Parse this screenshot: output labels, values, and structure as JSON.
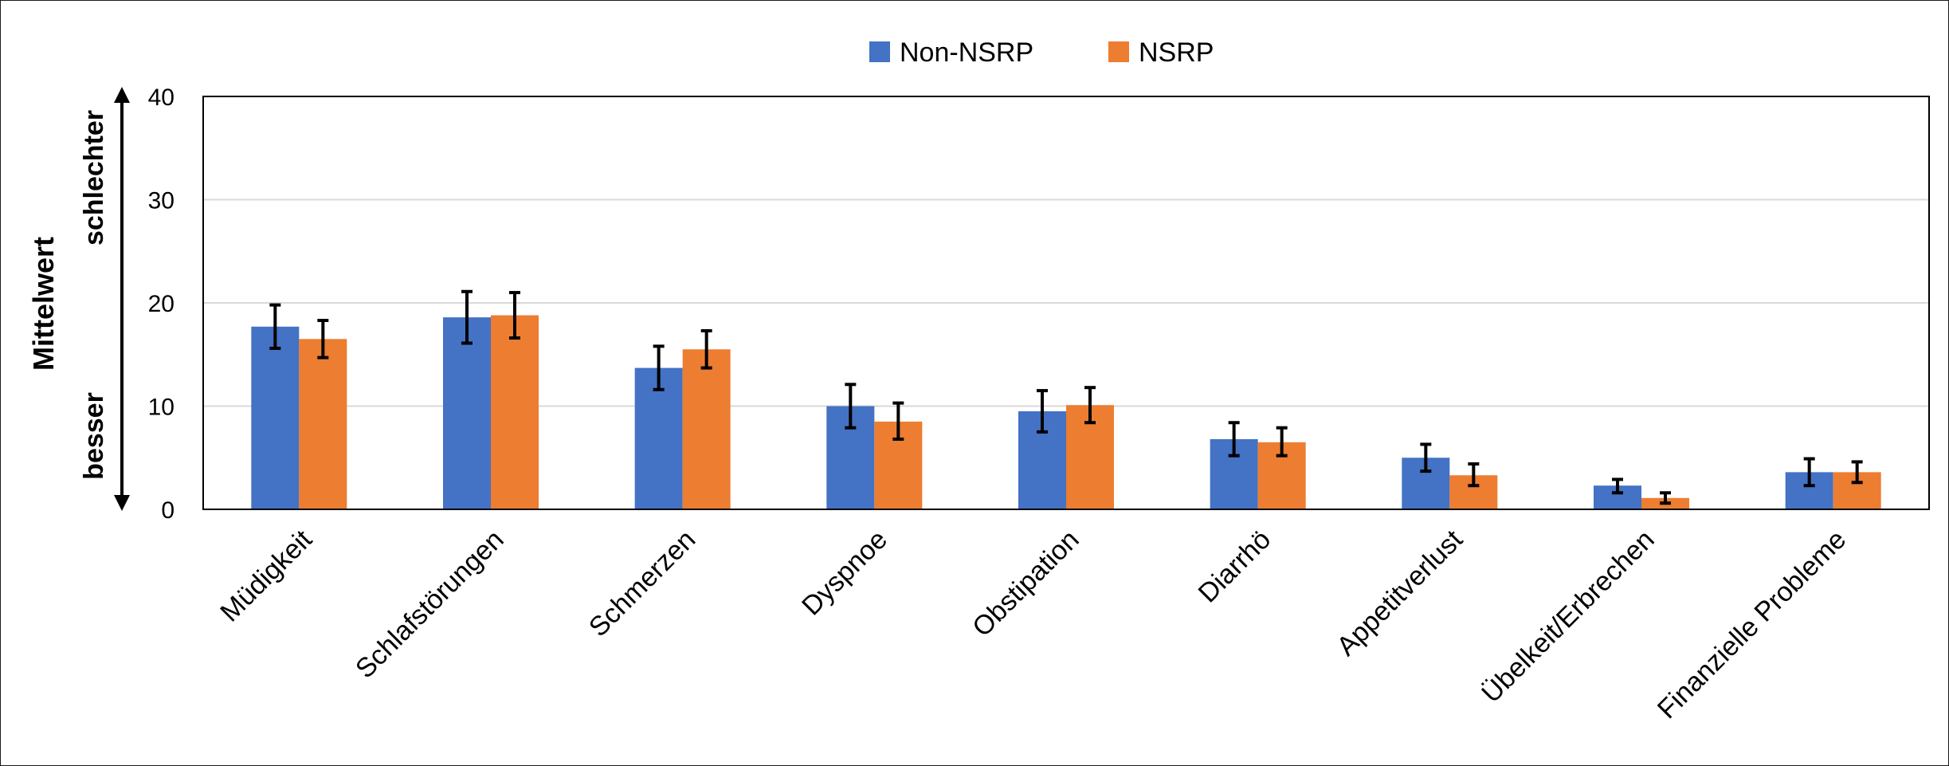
{
  "chart_data": {
    "type": "bar",
    "title": "",
    "xlabel": "",
    "ylabel": "Mittelwert",
    "direction_labels": {
      "low": "besser",
      "high": "schlechter"
    },
    "ylim": [
      0,
      40
    ],
    "yticks": [
      0,
      10,
      20,
      30,
      40
    ],
    "grid": true,
    "legend_position": "top-center",
    "categories": [
      "Müdigkeit",
      "Schlafstörungen",
      "Schmerzen",
      "Dyspnoe",
      "Obstipation",
      "Diarrhö",
      "Appetitverlust",
      "Übelkeit/Erbrechen",
      "Finanzielle Probleme"
    ],
    "series": [
      {
        "name": "Non-NSRP",
        "color": "#4472C4",
        "values": [
          17.7,
          18.6,
          13.7,
          10.0,
          9.5,
          6.8,
          5.0,
          2.3,
          3.6
        ],
        "err_low": [
          15.6,
          16.1,
          11.6,
          7.9,
          7.5,
          5.2,
          3.7,
          1.6,
          2.3
        ],
        "err_high": [
          19.8,
          21.1,
          15.8,
          12.1,
          11.5,
          8.4,
          6.3,
          2.9,
          4.9
        ]
      },
      {
        "name": "NSRP",
        "color": "#ED7D31",
        "values": [
          16.5,
          18.8,
          15.5,
          8.5,
          10.1,
          6.5,
          3.3,
          1.1,
          3.6
        ],
        "err_low": [
          14.7,
          16.6,
          13.7,
          6.8,
          8.4,
          5.2,
          2.3,
          0.6,
          2.6
        ],
        "err_high": [
          18.3,
          21.0,
          17.3,
          10.3,
          11.8,
          7.9,
          4.4,
          1.6,
          4.6
        ]
      }
    ]
  }
}
